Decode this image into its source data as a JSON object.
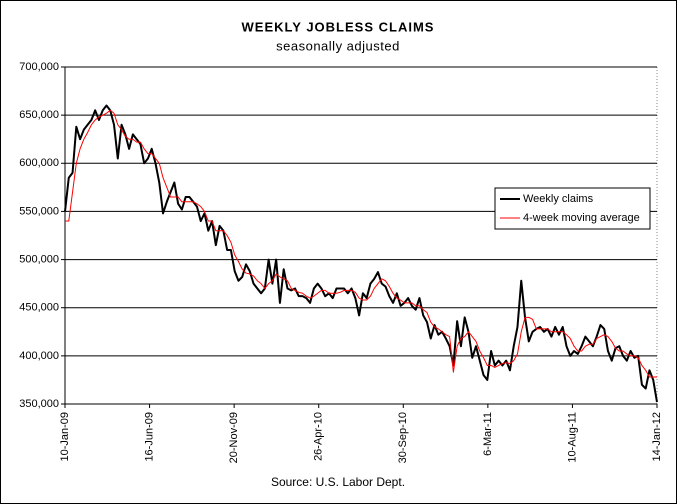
{
  "chart_data": {
    "type": "line",
    "title": "WEEKLY JOBLESS CLAIMS",
    "subtitle": "seasonally adjusted",
    "source": "Source: U.S. Labor Dept.",
    "legend": "right",
    "grid": true,
    "x": [
      "2009-01-10",
      "2009-01-17",
      "2009-01-24",
      "2009-01-31",
      "2009-02-07",
      "2009-02-14",
      "2009-02-21",
      "2009-02-28",
      "2009-03-07",
      "2009-03-14",
      "2009-03-21",
      "2009-03-28",
      "2009-04-04",
      "2009-04-11",
      "2009-04-18",
      "2009-04-25",
      "2009-05-02",
      "2009-05-09",
      "2009-05-16",
      "2009-05-23",
      "2009-05-30",
      "2009-06-06",
      "2009-06-13",
      "2009-06-20",
      "2009-06-27",
      "2009-07-04",
      "2009-07-11",
      "2009-07-18",
      "2009-07-25",
      "2009-08-01",
      "2009-08-08",
      "2009-08-15",
      "2009-08-22",
      "2009-08-29",
      "2009-09-05",
      "2009-09-12",
      "2009-09-19",
      "2009-09-26",
      "2009-10-03",
      "2009-10-10",
      "2009-10-17",
      "2009-10-24",
      "2009-10-31",
      "2009-11-07",
      "2009-11-14",
      "2009-11-21",
      "2009-11-28",
      "2009-12-05",
      "2009-12-12",
      "2009-12-19",
      "2009-12-26",
      "2010-01-02",
      "2010-01-09",
      "2010-01-16",
      "2010-01-23",
      "2010-01-30",
      "2010-02-06",
      "2010-02-13",
      "2010-02-20",
      "2010-02-27",
      "2010-03-06",
      "2010-03-13",
      "2010-03-20",
      "2010-03-27",
      "2010-04-03",
      "2010-04-10",
      "2010-04-17",
      "2010-04-24",
      "2010-05-01",
      "2010-05-08",
      "2010-05-15",
      "2010-05-22",
      "2010-05-29",
      "2010-06-05",
      "2010-06-12",
      "2010-06-19",
      "2010-06-26",
      "2010-07-03",
      "2010-07-10",
      "2010-07-17",
      "2010-07-24",
      "2010-07-31",
      "2010-08-07",
      "2010-08-14",
      "2010-08-21",
      "2010-08-28",
      "2010-09-04",
      "2010-09-11",
      "2010-09-18",
      "2010-09-25",
      "2010-10-02",
      "2010-10-09",
      "2010-10-16",
      "2010-10-23",
      "2010-10-30",
      "2010-11-06",
      "2010-11-13",
      "2010-11-20",
      "2010-11-27",
      "2010-12-04",
      "2010-12-11",
      "2010-12-18",
      "2010-12-25",
      "2011-01-01",
      "2011-01-08",
      "2011-01-15",
      "2011-01-22",
      "2011-01-29",
      "2011-02-05",
      "2011-02-12",
      "2011-02-19",
      "2011-02-26",
      "2011-03-05",
      "2011-03-12",
      "2011-03-19",
      "2011-03-26",
      "2011-04-02",
      "2011-04-09",
      "2011-04-16",
      "2011-04-23",
      "2011-04-30",
      "2011-05-07",
      "2011-05-14",
      "2011-05-21",
      "2011-05-28",
      "2011-06-04",
      "2011-06-11",
      "2011-06-18",
      "2011-06-25",
      "2011-07-02",
      "2011-07-09",
      "2011-07-16",
      "2011-07-23",
      "2011-07-30",
      "2011-08-06",
      "2011-08-13",
      "2011-08-20",
      "2011-08-27",
      "2011-09-03",
      "2011-09-10",
      "2011-09-17",
      "2011-09-24",
      "2011-10-01",
      "2011-10-08",
      "2011-10-15",
      "2011-10-22",
      "2011-10-29",
      "2011-11-05",
      "2011-11-12",
      "2011-11-19",
      "2011-11-26",
      "2011-12-03",
      "2011-12-10",
      "2011-12-17",
      "2011-12-24",
      "2011-12-31",
      "2012-01-07",
      "2012-01-14"
    ],
    "series": [
      {
        "name": "Weekly claims",
        "color": "#000000",
        "width": 2,
        "values": [
          550000,
          585000,
          590000,
          638000,
          625000,
          635000,
          640000,
          645000,
          655000,
          645000,
          655000,
          660000,
          655000,
          640000,
          605000,
          640000,
          630000,
          615000,
          630000,
          625000,
          620000,
          600000,
          605000,
          615000,
          600000,
          580000,
          548000,
          560000,
          570000,
          580000,
          558000,
          552000,
          565000,
          565000,
          560000,
          555000,
          540000,
          548000,
          530000,
          540000,
          515000,
          535000,
          530000,
          510000,
          510000,
          488000,
          478000,
          482000,
          495000,
          488000,
          475000,
          470000,
          465000,
          470000,
          500000,
          475000,
          500000,
          455000,
          490000,
          470000,
          468000,
          470000,
          462000,
          462000,
          460000,
          455000,
          470000,
          475000,
          470000,
          462000,
          465000,
          460000,
          470000,
          470000,
          470000,
          465000,
          470000,
          460000,
          442000,
          465000,
          460000,
          475000,
          480000,
          487000,
          475000,
          472000,
          462000,
          455000,
          465000,
          452000,
          455000,
          460000,
          452000,
          448000,
          460000,
          442000,
          435000,
          418000,
          432000,
          422000,
          425000,
          418000,
          410000,
          390000,
          436000,
          410000,
          440000,
          425000,
          398000,
          410000,
          395000,
          380000,
          375000,
          405000,
          390000,
          395000,
          390000,
          395000,
          385000,
          410000,
          430000,
          478000,
          440000,
          415000,
          425000,
          428000,
          430000,
          425000,
          428000,
          420000,
          430000,
          422000,
          430000,
          410000,
          400000,
          405000,
          402000,
          410000,
          420000,
          415000,
          410000,
          420000,
          432000,
          428000,
          405000,
          395000,
          408000,
          410000,
          400000,
          395000,
          405000,
          398000,
          400000,
          370000,
          366000,
          385000,
          375000,
          352000
        ]
      },
      {
        "name": "4-week moving average",
        "color": "#ff0000",
        "width": 1,
        "values": [
          540000,
          540000,
          570000,
          600000,
          615000,
          625000,
          632000,
          640000,
          645000,
          648000,
          650000,
          652000,
          655000,
          652000,
          640000,
          635000,
          628000,
          625000,
          625000,
          622000,
          622000,
          615000,
          610000,
          610000,
          605000,
          600000,
          585000,
          575000,
          565000,
          565000,
          565000,
          560000,
          560000,
          560000,
          560000,
          558000,
          555000,
          550000,
          540000,
          540000,
          530000,
          530000,
          530000,
          525000,
          518000,
          505000,
          498000,
          490000,
          486000,
          485000,
          483000,
          478000,
          475000,
          470000,
          475000,
          478000,
          485000,
          482000,
          480000,
          478000,
          470000,
          468000,
          466000,
          465000,
          462000,
          460000,
          462000,
          465000,
          468000,
          468000,
          465000,
          465000,
          465000,
          466000,
          468000,
          468000,
          468000,
          466000,
          460000,
          458000,
          458000,
          462000,
          470000,
          475000,
          480000,
          478000,
          472000,
          465000,
          460000,
          458000,
          455000,
          455000,
          455000,
          452000,
          452000,
          448000,
          445000,
          435000,
          430000,
          428000,
          425000,
          422000,
          420000,
          383000,
          410000,
          418000,
          420000,
          425000,
          420000,
          415000,
          405000,
          398000,
          390000,
          390000,
          388000,
          390000,
          392000,
          393000,
          392000,
          395000,
          402000,
          425000,
          440000,
          440000,
          438000,
          428000,
          428000,
          428000,
          428000,
          425000,
          425000,
          425000,
          425000,
          422000,
          418000,
          410000,
          405000,
          405000,
          410000,
          412000,
          412000,
          418000,
          420000,
          422000,
          420000,
          415000,
          408000,
          405000,
          405000,
          402000,
          400000,
          400000,
          398000,
          390000,
          385000,
          378000,
          378000,
          378000
        ]
      }
    ],
    "xlim": [
      "2009-01-10",
      "2012-01-14"
    ],
    "xticks": [
      {
        "value": "2009-01-10",
        "label": "10-Jan-09"
      },
      {
        "value": "2009-06-16",
        "label": "16-Jun-09"
      },
      {
        "value": "2009-11-20",
        "label": "20-Nov-09"
      },
      {
        "value": "2010-04-26",
        "label": "26-Apr-10"
      },
      {
        "value": "2010-09-30",
        "label": "30-Sep-10"
      },
      {
        "value": "2011-03-06",
        "label": "6-Mar-11"
      },
      {
        "value": "2011-08-10",
        "label": "10-Aug-11"
      },
      {
        "value": "2012-01-14",
        "label": "14-Jan-12"
      }
    ],
    "ylim": [
      350000,
      700000
    ],
    "yticks": [
      {
        "value": 350000,
        "label": "350,000"
      },
      {
        "value": 400000,
        "label": "400,000"
      },
      {
        "value": 450000,
        "label": "450,000"
      },
      {
        "value": 500000,
        "label": "500,000"
      },
      {
        "value": 550000,
        "label": "550,000"
      },
      {
        "value": 600000,
        "label": "600,000"
      },
      {
        "value": 650000,
        "label": "650,000"
      },
      {
        "value": 700000,
        "label": "700,000"
      }
    ]
  }
}
